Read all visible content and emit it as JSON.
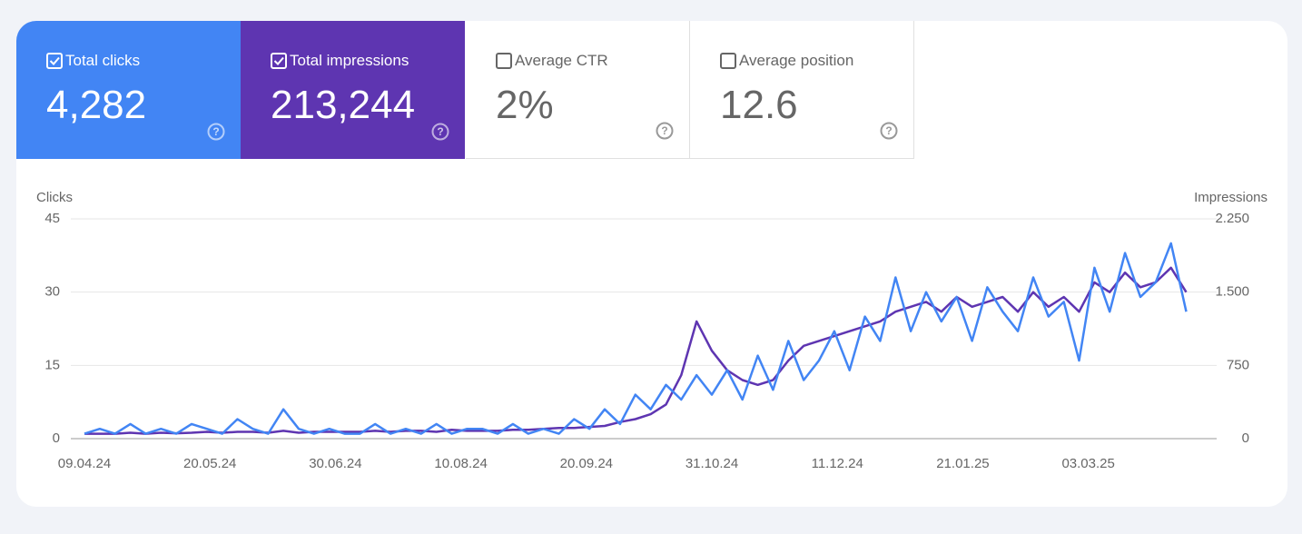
{
  "tiles": [
    {
      "label": "Total clicks",
      "value": "4,282",
      "checked": true,
      "color": "#4285f4"
    },
    {
      "label": "Total impressions",
      "value": "213,244",
      "checked": true,
      "color": "#5e35b1"
    },
    {
      "label": "Average CTR",
      "value": "2%",
      "checked": false,
      "color": "#ffffff"
    },
    {
      "label": "Average position",
      "value": "12.6",
      "checked": false,
      "color": "#ffffff"
    }
  ],
  "chart_data": {
    "type": "line",
    "y_label": "Clicks",
    "y2_label": "Impressions",
    "grid": true,
    "xlim": [
      0,
      364
    ],
    "xticks": [
      {
        "value": 0,
        "label": "09.04.24"
      },
      {
        "value": 41,
        "label": "20.05.24"
      },
      {
        "value": 82,
        "label": "30.06.24"
      },
      {
        "value": 123,
        "label": "10.08.24"
      },
      {
        "value": 164,
        "label": "20.09.24"
      },
      {
        "value": 205,
        "label": "31.10.24"
      },
      {
        "value": 246,
        "label": "11.12.24"
      },
      {
        "value": 287,
        "label": "21.01.25"
      },
      {
        "value": 328,
        "label": "03.03.25"
      }
    ],
    "ylim": [
      0,
      45
    ],
    "yticks": [
      0,
      15,
      30,
      45
    ],
    "y2lim": [
      0,
      2250
    ],
    "y2ticks": [
      0,
      750,
      {
        "value": 1500,
        "label": "1.500"
      },
      {
        "value": 2250,
        "label": "2.250"
      }
    ],
    "x": [
      0,
      5,
      10,
      15,
      20,
      25,
      30,
      35,
      40,
      45,
      50,
      55,
      60,
      65,
      70,
      75,
      80,
      85,
      90,
      95,
      100,
      105,
      110,
      115,
      120,
      125,
      130,
      135,
      140,
      145,
      150,
      155,
      160,
      165,
      170,
      175,
      180,
      185,
      190,
      195,
      200,
      205,
      210,
      215,
      220,
      225,
      230,
      235,
      240,
      245,
      250,
      255,
      260,
      265,
      270,
      275,
      280,
      285,
      290,
      295,
      300,
      305,
      310,
      315,
      320,
      325,
      330,
      335,
      340,
      345,
      350,
      355,
      360
    ],
    "series": [
      {
        "name": "Impressions",
        "color": "#5e35b1",
        "axis": "y2",
        "values": [
          50,
          50,
          50,
          60,
          50,
          60,
          55,
          60,
          70,
          60,
          70,
          70,
          60,
          80,
          60,
          70,
          70,
          70,
          70,
          80,
          70,
          80,
          80,
          70,
          90,
          80,
          80,
          80,
          90,
          90,
          100,
          110,
          110,
          120,
          130,
          170,
          200,
          250,
          350,
          650,
          1200,
          900,
          700,
          600,
          550,
          600,
          800,
          950,
          1000,
          1050,
          1100,
          1150,
          1200,
          1300,
          1350,
          1400,
          1300,
          1450,
          1350,
          1400,
          1450,
          1300,
          1500,
          1350,
          1450,
          1300,
          1600,
          1500,
          1700,
          1550,
          1600,
          1750,
          1500
        ]
      },
      {
        "name": "Clicks",
        "color": "#4285f4",
        "values": [
          1,
          2,
          1,
          3,
          1,
          2,
          1,
          3,
          2,
          1,
          4,
          2,
          1,
          6,
          2,
          1,
          2,
          1,
          1,
          3,
          1,
          2,
          1,
          3,
          1,
          2,
          2,
          1,
          3,
          1,
          2,
          1,
          4,
          2,
          6,
          3,
          9,
          6,
          11,
          8,
          13,
          9,
          14,
          8,
          17,
          10,
          20,
          12,
          16,
          22,
          14,
          25,
          20,
          33,
          22,
          30,
          24,
          29,
          20,
          31,
          26,
          22,
          33,
          25,
          28,
          16,
          35,
          26,
          38,
          29,
          32,
          40,
          26
        ]
      }
    ]
  }
}
